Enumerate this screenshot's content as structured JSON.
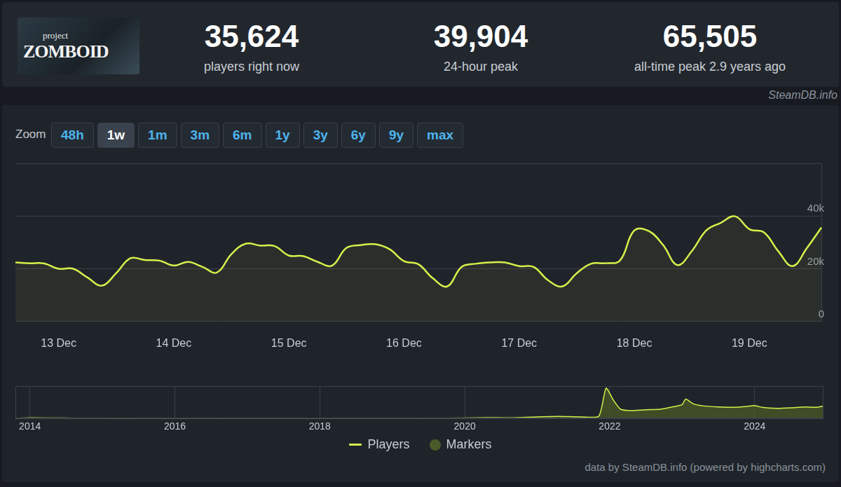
{
  "header": {
    "logo": {
      "line1": "project",
      "line2": "ZOMBOID"
    },
    "stats": [
      {
        "value": "35,624",
        "label": "players right now"
      },
      {
        "value": "39,904",
        "label": "24-hour peak"
      },
      {
        "value": "65,505",
        "label": "all-time peak 2.9 years ago"
      }
    ],
    "source": "SteamDB.info"
  },
  "zoom": {
    "label": "Zoom",
    "buttons": [
      "48h",
      "1w",
      "1m",
      "3m",
      "6m",
      "1y",
      "3y",
      "6y",
      "9y",
      "max"
    ],
    "active": "1w"
  },
  "chart_data": [
    {
      "type": "line",
      "categories": [
        null,
        null,
        null,
        "13 Dec",
        null,
        null,
        null,
        null,
        null,
        null,
        null,
        "14 Dec",
        null,
        null,
        null,
        null,
        null,
        null,
        null,
        "15 Dec",
        null,
        null,
        null,
        null,
        null,
        null,
        null,
        "16 Dec",
        null,
        null,
        null,
        null,
        null,
        null,
        null,
        "17 Dec",
        null,
        null,
        null,
        null,
        null,
        null,
        null,
        "18 Dec",
        null,
        null,
        null,
        null,
        null,
        null,
        null,
        "19 Dec",
        null,
        null,
        null,
        null,
        null
      ],
      "series": [
        {
          "name": "Players",
          "color": "#d6f04a",
          "line_style": "solid",
          "values": [
            22400,
            22100,
            22000,
            20000,
            20000,
            16700,
            13600,
            18300,
            24000,
            23300,
            23100,
            21200,
            22600,
            20700,
            18600,
            25500,
            29500,
            28800,
            28600,
            25000,
            24800,
            22600,
            21200,
            27900,
            29000,
            29300,
            27400,
            22900,
            21700,
            16400,
            13300,
            20700,
            21900,
            22400,
            22400,
            21000,
            20700,
            15700,
            13300,
            18300,
            21900,
            22100,
            23100,
            34500,
            34300,
            29000,
            21400,
            26700,
            34500,
            37400,
            39900,
            35000,
            33800,
            26700,
            21000,
            27900,
            35624
          ]
        },
        {
          "name": "Markers",
          "color": "#4a5a28",
          "type": "scatter",
          "marker": "circle",
          "values": [
            null,
            null,
            null,
            null,
            null,
            null,
            null,
            null,
            null,
            null,
            null,
            null,
            null,
            null,
            null,
            null,
            null,
            null,
            null,
            null,
            null,
            null,
            null,
            null,
            null,
            null,
            null,
            null,
            null,
            null,
            null,
            null,
            null,
            null,
            null,
            null,
            null,
            null,
            null,
            null,
            null,
            null,
            null,
            null,
            null,
            null,
            null,
            null,
            null,
            null,
            null,
            null,
            null,
            null,
            null,
            null,
            null
          ]
        }
      ],
      "ylim": [
        0,
        60000
      ],
      "yticks": [
        0,
        {
          "value": 20000,
          "label": "20k"
        },
        {
          "value": 40000,
          "label": "40k"
        }
      ],
      "grid": true,
      "legend": "bottom"
    },
    {
      "type": "area",
      "x": [
        2013.8,
        2014.0,
        2014.3,
        2014.6,
        2015.0,
        2015.5,
        2016.0,
        2016.5,
        2017.0,
        2017.5,
        2018.0,
        2018.5,
        2019.0,
        2019.5,
        2020.0,
        2020.3,
        2020.6,
        2021.0,
        2021.3,
        2021.6,
        2021.85,
        2021.95,
        2022.05,
        2022.15,
        2022.3,
        2022.5,
        2022.7,
        2022.9,
        2023.0,
        2023.05,
        2023.15,
        2023.3,
        2023.5,
        2023.7,
        2023.9,
        2024.0,
        2024.1,
        2024.3,
        2024.5,
        2024.7,
        2024.85,
        2024.95
      ],
      "values": [
        300,
        1500,
        1200,
        600,
        500,
        500,
        700,
        600,
        500,
        600,
        700,
        500,
        600,
        800,
        1000,
        1800,
        1500,
        3500,
        4500,
        3500,
        5000,
        65505,
        40000,
        20000,
        17000,
        19000,
        20000,
        26000,
        30000,
        42000,
        32000,
        27000,
        25000,
        24000,
        26000,
        28000,
        24000,
        22000,
        23000,
        25000,
        24000,
        27000
      ],
      "color": "#d6f04a",
      "xlim": [
        2013.8,
        2024.95
      ],
      "xticks": [
        2014,
        2016,
        2018,
        2020,
        2022,
        2024
      ],
      "ylim": [
        0,
        70000
      ],
      "grid": true,
      "tick_labels": "x"
    }
  ],
  "footer": "data by SteamDB.info (powered by highcharts.com)"
}
